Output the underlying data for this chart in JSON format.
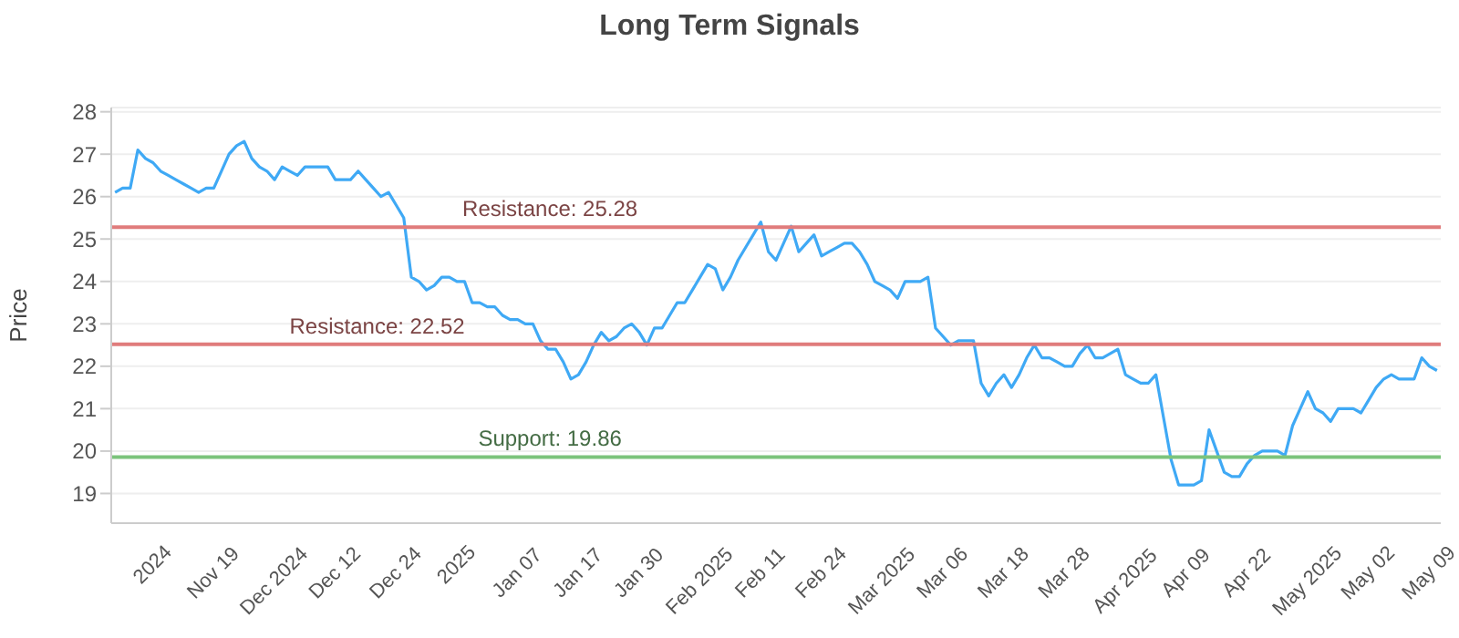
{
  "chart_data": {
    "type": "line",
    "title": "Long Term Signals",
    "ylabel": "Price",
    "categories": [
      null,
      null,
      null,
      null,
      null,
      "2024",
      null,
      null,
      null,
      null,
      null,
      null,
      null,
      "Nov 19",
      null,
      null,
      null,
      null,
      null,
      null,
      null,
      "Dec 2024",
      null,
      null,
      null,
      null,
      null,
      null,
      null,
      "Dec 12",
      null,
      null,
      null,
      null,
      null,
      null,
      null,
      "Dec 24",
      null,
      null,
      null,
      null,
      null,
      null,
      null,
      "2025",
      null,
      null,
      null,
      null,
      null,
      null,
      null,
      "Jan 07",
      null,
      null,
      null,
      null,
      null,
      null,
      null,
      "Jan 17",
      null,
      null,
      null,
      null,
      null,
      null,
      null,
      "Jan 30",
      null,
      null,
      null,
      null,
      null,
      null,
      null,
      "Feb 2025",
      null,
      null,
      null,
      null,
      null,
      null,
      null,
      "Feb 11",
      null,
      null,
      null,
      null,
      null,
      null,
      null,
      "Feb 24",
      null,
      null,
      null,
      null,
      null,
      null,
      null,
      "Mar 2025",
      null,
      null,
      null,
      null,
      null,
      null,
      null,
      "Mar 06",
      null,
      null,
      null,
      null,
      null,
      null,
      null,
      "Mar 18",
      null,
      null,
      null,
      null,
      null,
      null,
      null,
      "Mar 28",
      null,
      null,
      null,
      null,
      null,
      null,
      null,
      "Apr 2025",
      null,
      null,
      null,
      null,
      null,
      null,
      null,
      "Apr 09",
      null,
      null,
      null,
      null,
      null,
      null,
      null,
      "Apr 22",
      null,
      null,
      null,
      null,
      null,
      null,
      null,
      "May 2025",
      null,
      null,
      null,
      null,
      null,
      null,
      null,
      "May 02",
      null,
      null,
      null,
      null,
      null,
      null,
      null,
      "May 09",
      null
    ],
    "series": [
      {
        "color": "#3fa9f5",
        "values": [
          26.1,
          26.2,
          26.2,
          27.1,
          26.9,
          26.8,
          26.6,
          26.5,
          26.4,
          26.3,
          26.2,
          26.1,
          26.2,
          26.2,
          26.6,
          27.0,
          27.2,
          27.3,
          26.9,
          26.7,
          26.6,
          26.4,
          26.7,
          26.6,
          26.5,
          26.7,
          26.7,
          26.7,
          26.7,
          26.4,
          26.4,
          26.4,
          26.6,
          26.4,
          26.2,
          26.0,
          26.1,
          25.8,
          25.5,
          24.1,
          24.0,
          23.8,
          23.9,
          24.1,
          24.1,
          24.0,
          24.0,
          23.5,
          23.5,
          23.4,
          23.4,
          23.2,
          23.1,
          23.1,
          23.0,
          23.0,
          22.6,
          22.4,
          22.4,
          22.1,
          21.7,
          21.8,
          22.1,
          22.5,
          22.8,
          22.6,
          22.7,
          22.9,
          23.0,
          22.8,
          22.5,
          22.9,
          22.9,
          23.2,
          23.5,
          23.5,
          23.8,
          24.1,
          24.4,
          24.3,
          23.8,
          24.1,
          24.5,
          24.8,
          25.1,
          25.4,
          24.7,
          24.5,
          24.9,
          25.3,
          24.7,
          24.9,
          25.1,
          24.6,
          24.7,
          24.8,
          24.9,
          24.9,
          24.7,
          24.4,
          24.0,
          23.9,
          23.8,
          23.6,
          24.0,
          24.0,
          24.0,
          24.1,
          22.9,
          22.7,
          22.5,
          22.6,
          22.6,
          22.6,
          21.6,
          21.3,
          21.6,
          21.8,
          21.5,
          21.8,
          22.2,
          22.5,
          22.2,
          22.2,
          22.1,
          22.0,
          22.0,
          22.3,
          22.5,
          22.2,
          22.2,
          22.3,
          22.4,
          21.8,
          21.7,
          21.6,
          21.6,
          21.8,
          20.8,
          19.8,
          19.2,
          19.2,
          19.2,
          19.3,
          20.5,
          20.0,
          19.5,
          19.4,
          19.4,
          19.7,
          19.9,
          20.0,
          20.0,
          20.0,
          19.9,
          20.6,
          21.0,
          21.4,
          21.0,
          20.9,
          20.7,
          21.0,
          21.0,
          21.0,
          20.9,
          21.2,
          21.5,
          21.7,
          21.8,
          21.7,
          21.7,
          21.7,
          22.2,
          22.0,
          21.9
        ]
      }
    ],
    "ylim": [
      18.3,
      28.1
    ],
    "yticks": [
      19,
      20,
      21,
      22,
      23,
      24,
      25,
      26,
      27,
      28
    ],
    "ref_lines": [
      {
        "axis": "y",
        "value": 25.28,
        "label": "Resistance: 25.28",
        "color": "#e07c7c"
      },
      {
        "axis": "y",
        "value": 22.52,
        "label": "Resistance: 22.52",
        "color": "#e07c7c"
      },
      {
        "axis": "y",
        "value": 19.86,
        "label": "Support: 19.86",
        "color": "#7cc47c"
      }
    ],
    "grid": "y",
    "marker": "none",
    "line_style": "solid",
    "legend": false
  }
}
